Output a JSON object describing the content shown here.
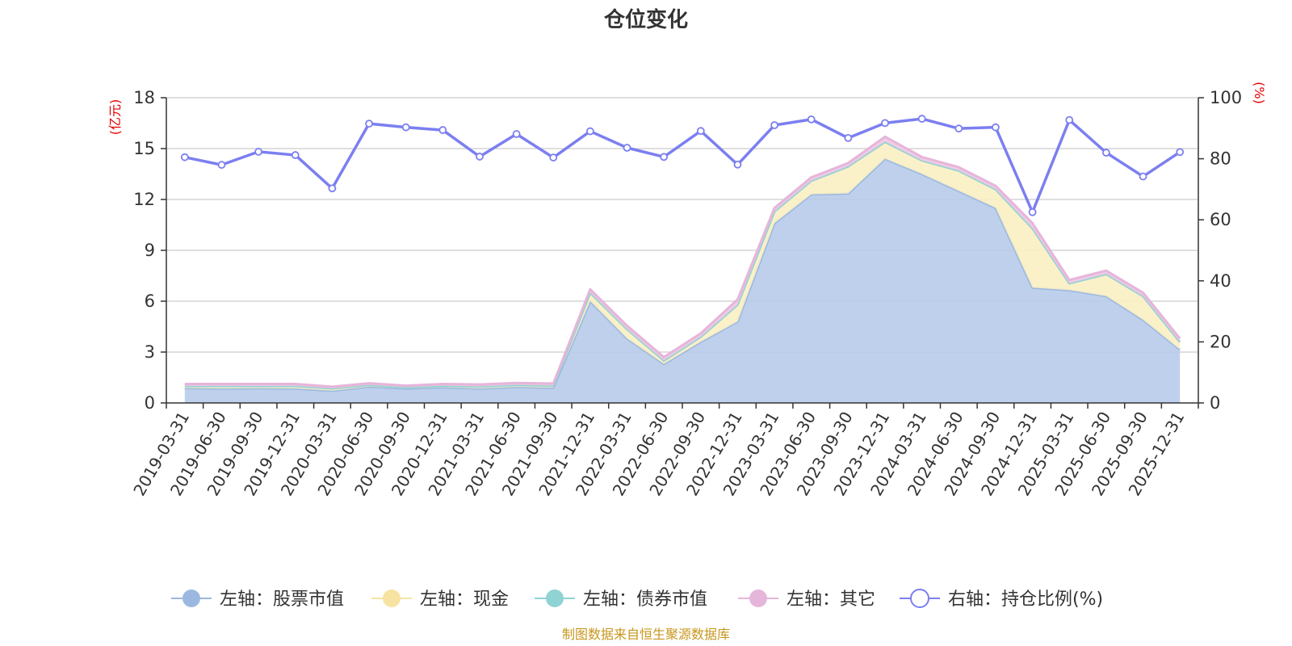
{
  "chart_data": {
    "type": "area",
    "title": "仓位变化",
    "left_axis_unit": "(亿元)",
    "right_axis_unit": "(%)",
    "left_ylim": [
      0,
      18
    ],
    "left_yticks": [
      0,
      3,
      6,
      9,
      12,
      15,
      18
    ],
    "right_ylim": [
      0,
      100
    ],
    "right_yticks": [
      0,
      20,
      40,
      60,
      80,
      100
    ],
    "grid": true,
    "legend_position": "bottom",
    "categories": [
      "2019-03-31",
      "2019-06-30",
      "2019-09-30",
      "2019-12-31",
      "2020-03-31",
      "2020-06-30",
      "2020-09-30",
      "2020-12-31",
      "2021-03-31",
      "2021-06-30",
      "2021-09-30",
      "2021-12-31",
      "2022-03-31",
      "2022-06-30",
      "2022-09-30",
      "2022-12-31",
      "2023-03-31",
      "2023-06-30",
      "2023-09-30",
      "2023-12-31",
      "2024-03-31",
      "2024-06-30",
      "2024-09-30",
      "2024-12-31",
      "2025-03-31",
      "2025-06-30",
      "2025-09-30",
      "2025-12-31"
    ],
    "series": [
      {
        "name": "左轴：股票市值",
        "axis": "left",
        "color": "#9bb8e0",
        "fill": "#b7cbea",
        "values": [
          0.88,
          0.85,
          0.87,
          0.85,
          0.72,
          0.96,
          0.85,
          0.92,
          0.85,
          0.94,
          0.9,
          6.0,
          3.8,
          2.3,
          3.6,
          4.8,
          10.6,
          12.3,
          12.35,
          14.4,
          13.5,
          12.5,
          11.5,
          6.8,
          6.65,
          6.3,
          4.9,
          3.15
        ]
      },
      {
        "name": "左轴：现金",
        "axis": "left",
        "color": "#f7e3a1",
        "fill": "#fbefc3",
        "values": [
          0.12,
          0.15,
          0.13,
          0.15,
          0.14,
          0.1,
          0.07,
          0.1,
          0.12,
          0.12,
          0.12,
          0.5,
          0.55,
          0.2,
          0.3,
          1.0,
          0.7,
          0.8,
          1.6,
          1.0,
          0.8,
          1.2,
          1.1,
          3.5,
          0.4,
          1.3,
          1.4,
          0.45
        ]
      },
      {
        "name": "左轴：债券市值",
        "axis": "left",
        "color": "#8fd3d4",
        "fill": "#aee0e0",
        "values": [
          0,
          0,
          0,
          0,
          0,
          0,
          0,
          0,
          0,
          0,
          0,
          0,
          0,
          0,
          0,
          0,
          0,
          0,
          0,
          0,
          0,
          0,
          0,
          0,
          0,
          0,
          0,
          0
        ]
      },
      {
        "name": "左轴：其它",
        "axis": "left",
        "color": "#e6b5da",
        "fill": "#efc9e4",
        "values": [
          0.12,
          0.12,
          0.12,
          0.12,
          0.1,
          0.1,
          0.1,
          0.1,
          0.12,
          0.12,
          0.12,
          0.2,
          0.2,
          0.2,
          0.2,
          0.3,
          0.2,
          0.2,
          0.2,
          0.3,
          0.2,
          0.2,
          0.2,
          0.3,
          0.2,
          0.2,
          0.2,
          0.2
        ]
      },
      {
        "name": "右轴：持仓比例(%)",
        "axis": "right",
        "color": "#7b7ff0",
        "values": [
          80.5,
          78.0,
          82.3,
          81.2,
          70.3,
          91.5,
          90.3,
          89.4,
          80.7,
          88.1,
          80.4,
          89.0,
          83.6,
          80.6,
          89.1,
          78.1,
          91.0,
          92.9,
          86.8,
          91.7,
          93.1,
          89.9,
          90.3,
          62.5,
          92.7,
          82.0,
          74.2,
          82.2
        ]
      }
    ]
  },
  "source_note": "制图数据来自恒生聚源数据库"
}
